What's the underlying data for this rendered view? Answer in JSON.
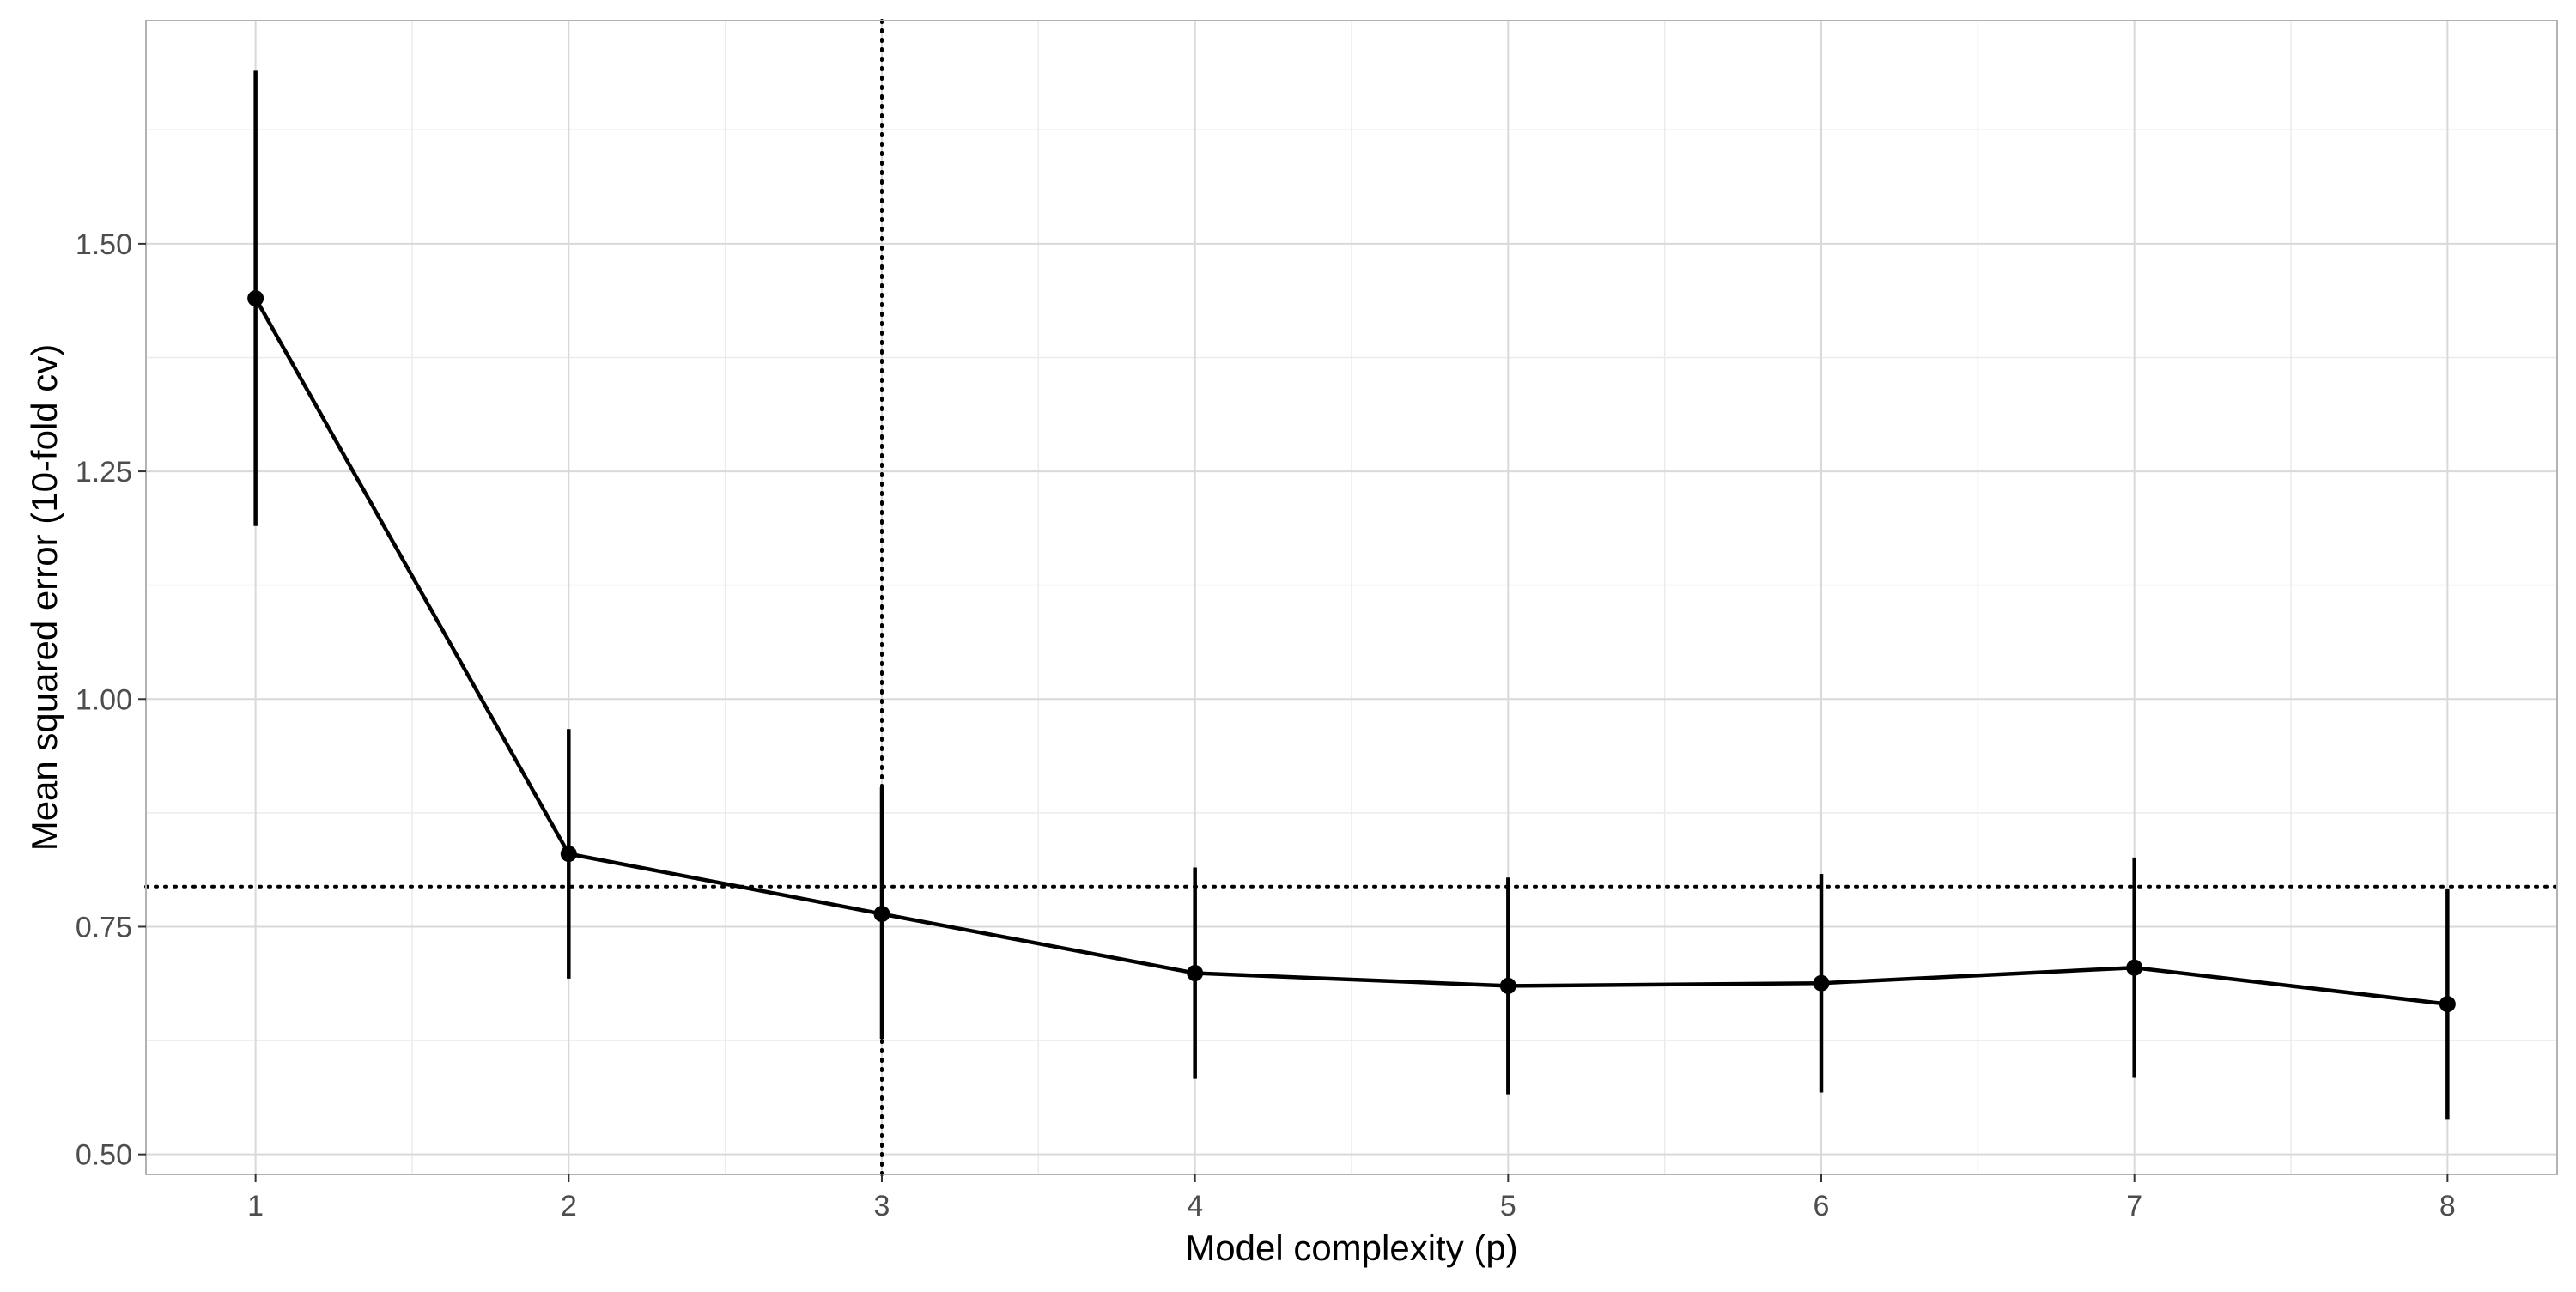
{
  "chart_data": {
    "type": "line",
    "xlabel": "Model complexity (p)",
    "ylabel": "Mean squared error (10-fold cv)",
    "xlim": [
      0.65,
      8.35
    ],
    "ylim": [
      0.478,
      1.745
    ],
    "x_ticks": [
      1,
      2,
      3,
      4,
      5,
      6,
      7,
      8
    ],
    "x_tick_labels": [
      "1",
      "2",
      "3",
      "4",
      "5",
      "6",
      "7",
      "8"
    ],
    "y_ticks": [
      0.5,
      0.75,
      1.0,
      1.25,
      1.5
    ],
    "y_tick_labels": [
      "0.50",
      "0.75",
      "1.00",
      "1.25",
      "1.50"
    ],
    "grid": true,
    "series": [
      {
        "x": [
          1,
          2,
          3,
          4,
          5,
          6,
          7,
          8
        ],
        "y": [
          1.44,
          0.83,
          0.764,
          0.699,
          0.685,
          0.688,
          0.705,
          0.665
        ],
        "ymin": [
          1.19,
          0.693,
          0.627,
          0.583,
          0.566,
          0.568,
          0.584,
          0.538
        ],
        "ymax": [
          1.69,
          0.967,
          0.903,
          0.815,
          0.804,
          0.808,
          0.826,
          0.792
        ],
        "color": "#000000"
      }
    ],
    "reference_lines": {
      "vertical_x": 3,
      "horizontal_y": 0.794,
      "style": "dotted"
    }
  }
}
